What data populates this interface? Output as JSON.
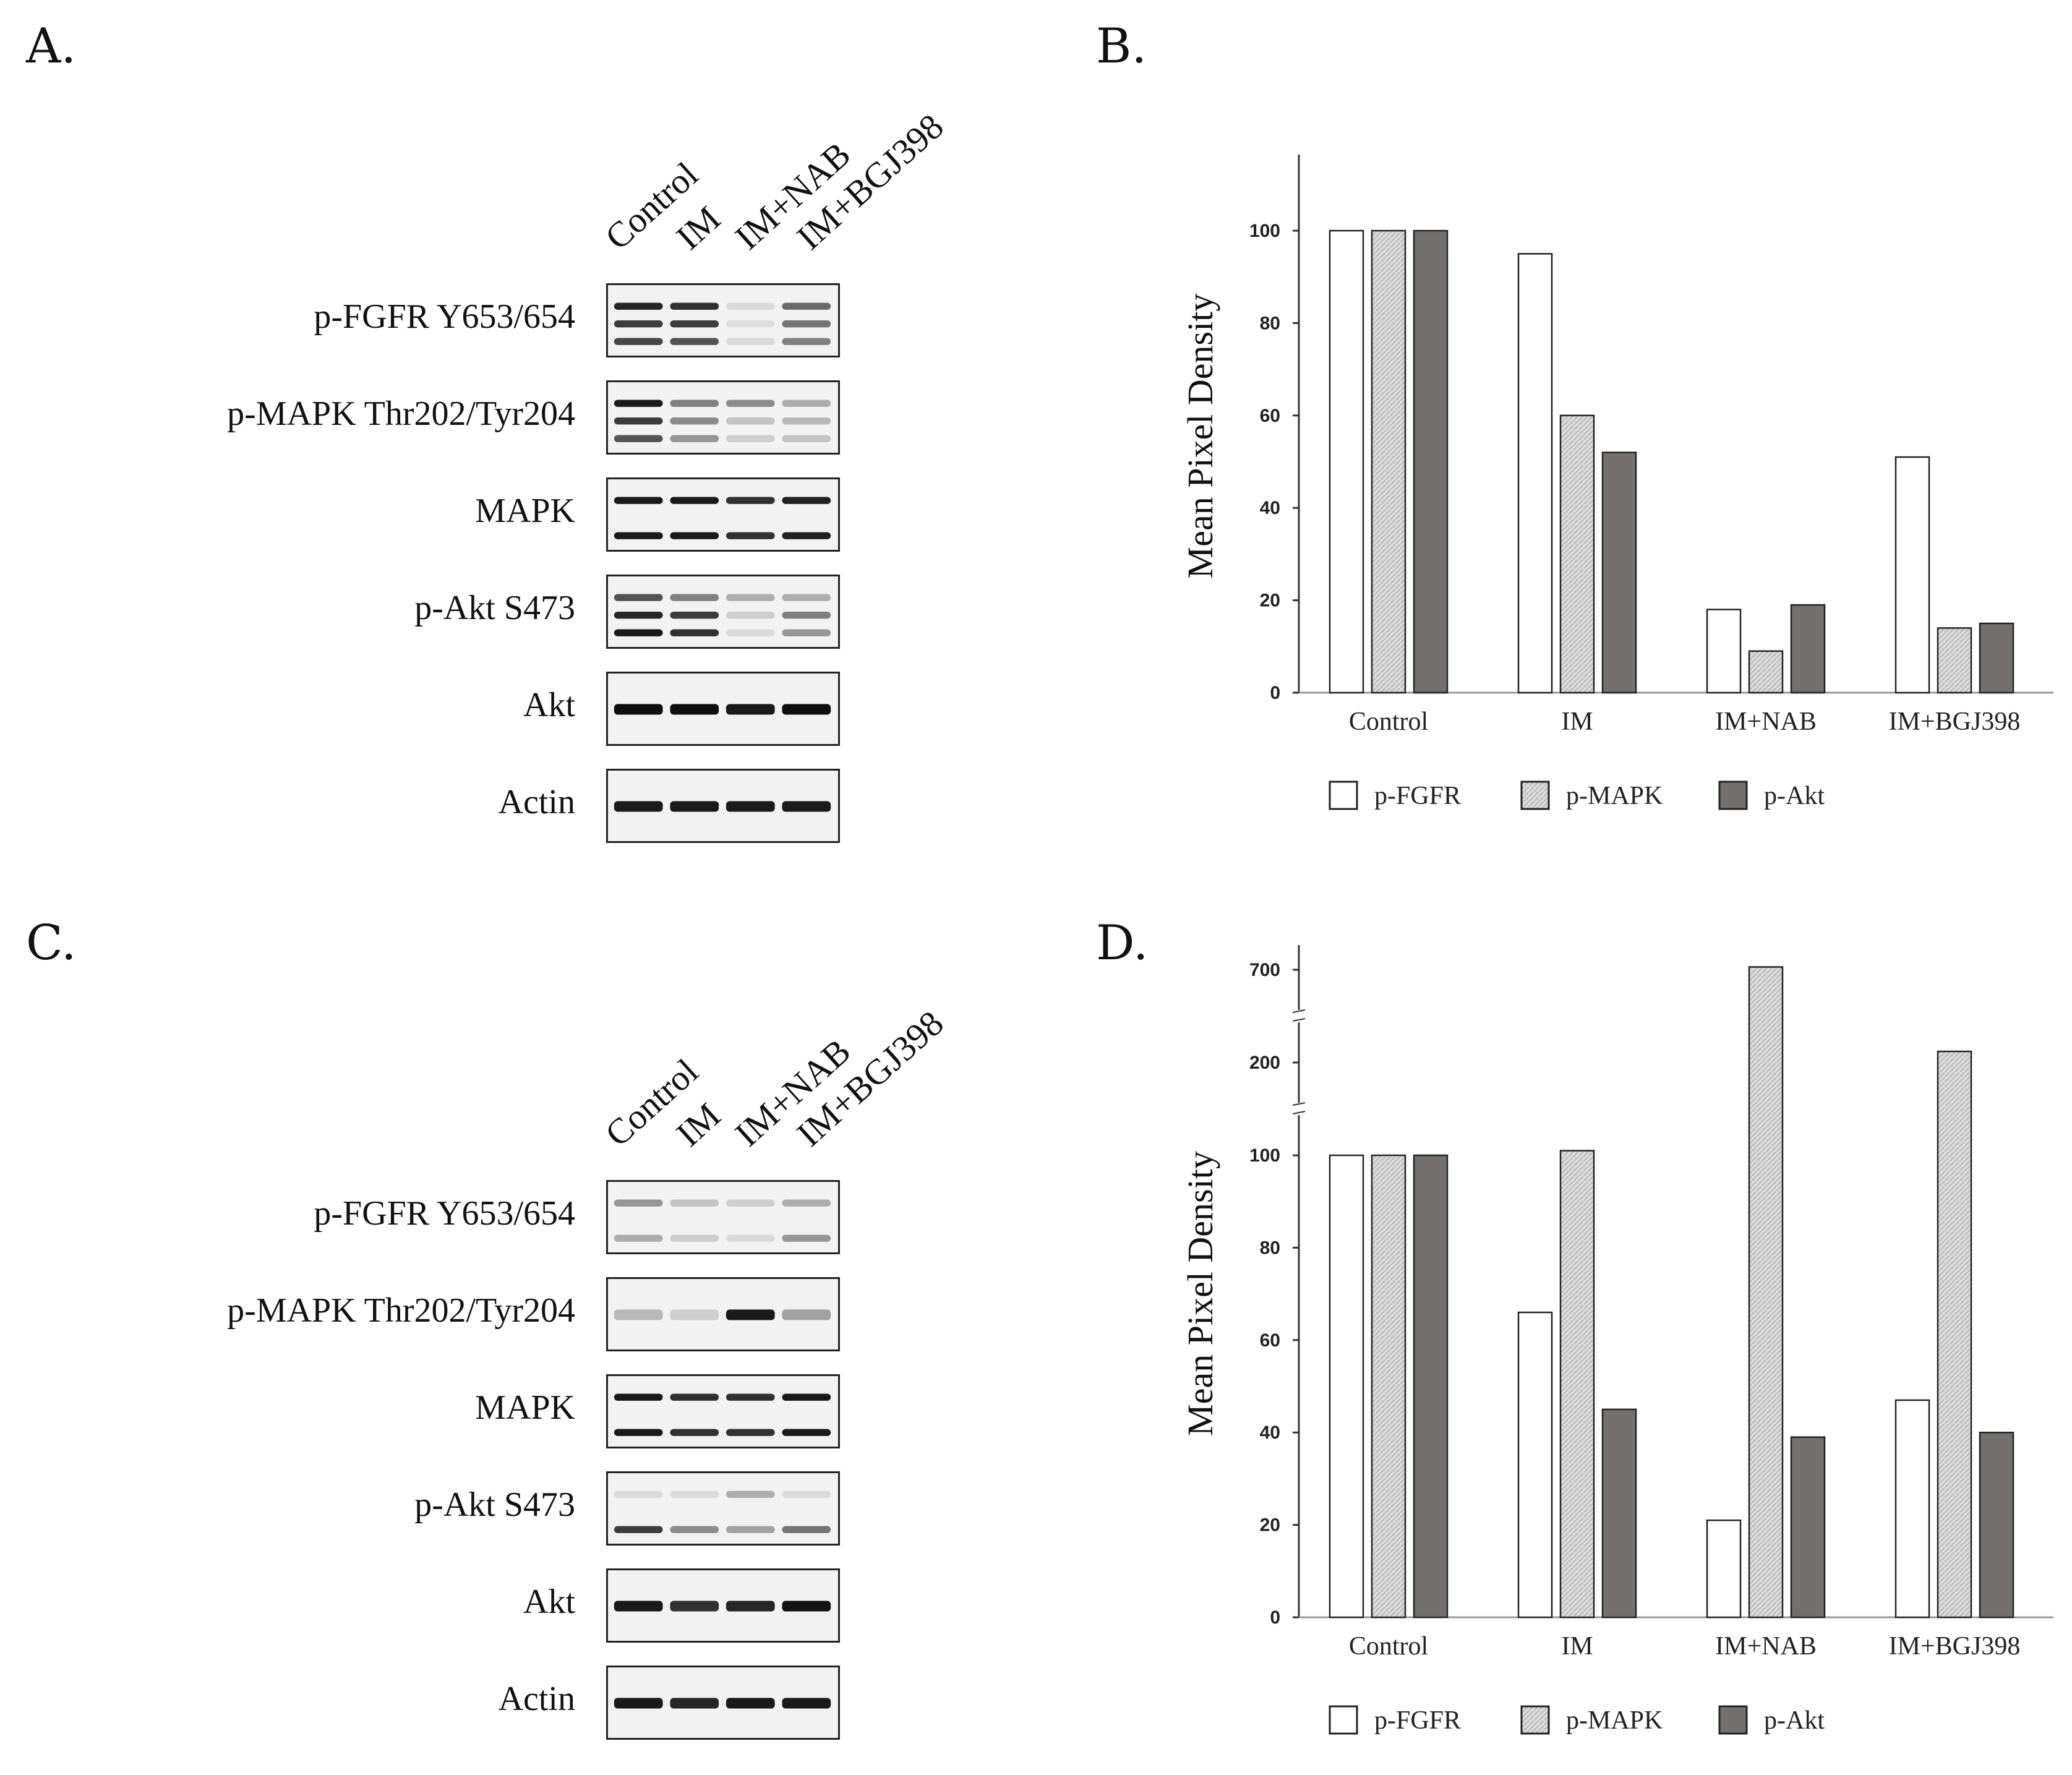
{
  "panels": {
    "a": "A.",
    "b": "B.",
    "c": "C.",
    "d": "D."
  },
  "blots": {
    "lanes": [
      "Control",
      "IM",
      "IM+NAB",
      "IM+BGJ398"
    ],
    "rows": [
      "p-FGFR Y653/654",
      "p-MAPK Thr202/Tyr204",
      "MAPK",
      "p-Akt S473",
      "Akt",
      "Actin"
    ]
  },
  "chart_data": [
    {
      "type": "bar",
      "panel": "B.",
      "categories": [
        "Control",
        "IM",
        "IM+NAB",
        "IM+BGJ398"
      ],
      "series": [
        {
          "name": "p-FGFR",
          "values": [
            100,
            95,
            18,
            51
          ],
          "color": "#ffffff"
        },
        {
          "name": "p-MAPK",
          "values": [
            100,
            60,
            9,
            14
          ],
          "color": "#d9d9d9"
        },
        {
          "name": "p-Akt",
          "values": [
            100,
            52,
            19,
            15
          ],
          "color": "#757070"
        }
      ],
      "ylabel": "Mean Pixel Density",
      "yticks": [
        "0",
        "20",
        "40",
        "60",
        "80",
        "100"
      ],
      "ylim": [
        0,
        110
      ],
      "legend": "bottom"
    },
    {
      "type": "bar",
      "panel": "D.",
      "categories": [
        "Control",
        "IM",
        "IM+NAB",
        "IM+BGJ398"
      ],
      "series": [
        {
          "name": "p-FGFR",
          "values": [
            100,
            66,
            21,
            47
          ],
          "color": "#ffffff"
        },
        {
          "name": "p-MAPK",
          "values": [
            100,
            105,
            715,
            260
          ],
          "color": "#d9d9d9"
        },
        {
          "name": "p-Akt",
          "values": [
            100,
            45,
            39,
            40
          ],
          "color": "#757070"
        }
      ],
      "ylabel": "Mean Pixel Density",
      "yticks": [
        "0",
        "20",
        "40",
        "60",
        "80",
        "100",
        "200",
        "700"
      ],
      "y_axis_breaks": true,
      "legend": "bottom"
    }
  ]
}
